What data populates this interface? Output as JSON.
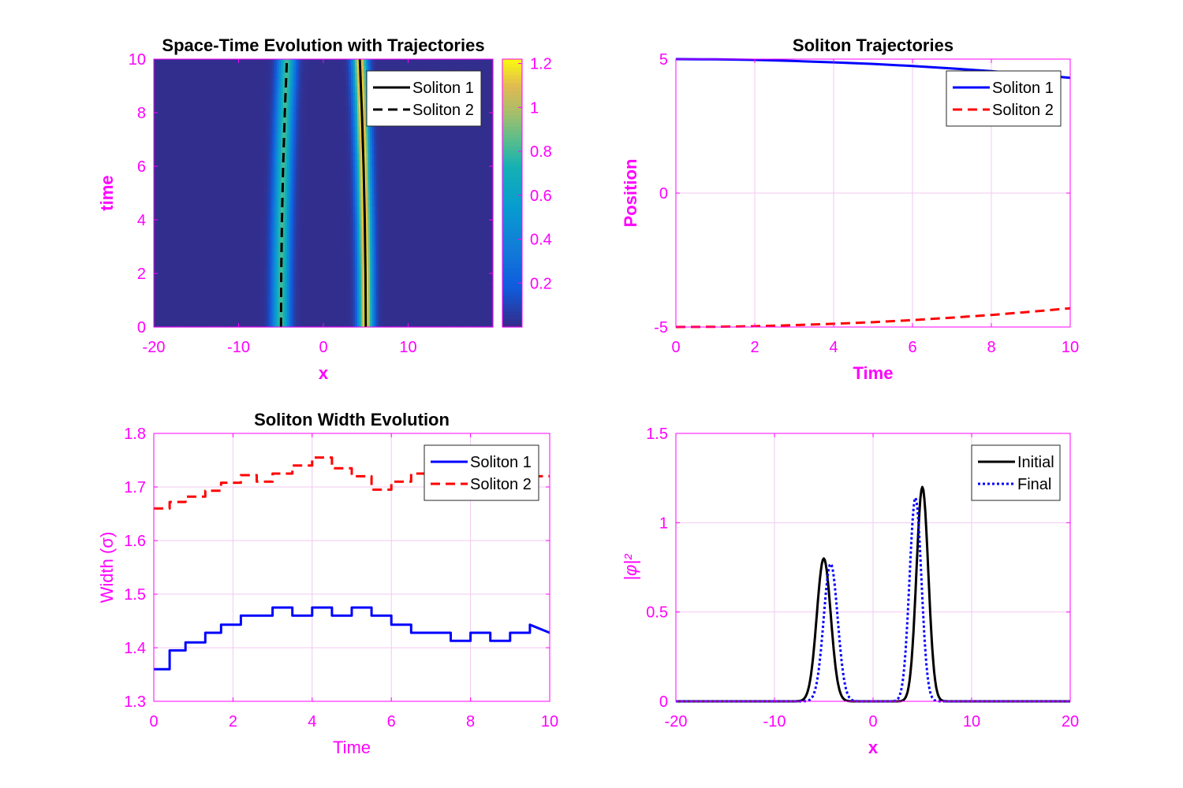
{
  "colors": {
    "axis": "#ff00ff",
    "grid": "#f2c8f2",
    "title": "#000000",
    "blue": "#0000ff",
    "red": "#ff0000",
    "black": "#000000"
  },
  "chart_data": [
    {
      "type": "heatmap",
      "title": "Space-Time Evolution with Trajectories",
      "xlabel": "x",
      "ylabel": "time",
      "xlim": [
        -20,
        20
      ],
      "ylim": [
        0,
        10
      ],
      "xticks": [
        -20,
        -10,
        0,
        10
      ],
      "yticks": [
        0,
        2,
        4,
        6,
        8,
        10
      ],
      "colorbar": {
        "range": [
          0,
          1.22
        ],
        "ticks": [
          0.2,
          0.4,
          0.6,
          0.8,
          1,
          1.2
        ],
        "colormap": "parula"
      },
      "series": [
        {
          "name": "Soliton 1",
          "style": "solid",
          "color": "#000000",
          "t": [
            0,
            2,
            4,
            6,
            8,
            10
          ],
          "x": [
            5.0,
            4.97,
            4.88,
            4.74,
            4.55,
            4.3
          ]
        },
        {
          "name": "Soliton 2",
          "style": "dashed",
          "color": "#000000",
          "t": [
            0,
            2,
            4,
            6,
            8,
            10
          ],
          "x": [
            -5.0,
            -4.97,
            -4.88,
            -4.74,
            -4.55,
            -4.3
          ]
        }
      ],
      "legend": "top-right"
    },
    {
      "type": "line",
      "title": "Soliton Trajectories",
      "xlabel": "Time",
      "ylabel": "Position",
      "xlim": [
        0,
        10
      ],
      "ylim": [
        -5,
        5
      ],
      "xticks": [
        0,
        2,
        4,
        6,
        8,
        10
      ],
      "yticks": [
        -5,
        0,
        5
      ],
      "x": [
        0,
        1,
        2,
        3,
        4,
        5,
        6,
        7,
        8,
        9,
        10
      ],
      "series": [
        {
          "name": "Soliton 1",
          "style": "solid",
          "color": "#0000ff",
          "values": [
            5.0,
            4.99,
            4.97,
            4.93,
            4.88,
            4.82,
            4.74,
            4.65,
            4.55,
            4.43,
            4.3
          ]
        },
        {
          "name": "Soliton 2",
          "style": "dashed",
          "color": "#ff0000",
          "values": [
            -5.0,
            -4.99,
            -4.97,
            -4.93,
            -4.88,
            -4.82,
            -4.74,
            -4.65,
            -4.55,
            -4.43,
            -4.3
          ]
        }
      ],
      "legend": "top-right"
    },
    {
      "type": "line",
      "title": "Soliton Width Evolution",
      "xlabel": "Time",
      "ylabel": "Width (σ)",
      "xlim": [
        0,
        10
      ],
      "ylim": [
        1.3,
        1.8
      ],
      "xticks": [
        0,
        2,
        4,
        6,
        8,
        10
      ],
      "yticks": [
        1.3,
        1.4,
        1.5,
        1.6,
        1.7,
        1.8
      ],
      "x": [
        0,
        0.4,
        0.4,
        0.8,
        0.8,
        1.3,
        1.3,
        1.7,
        1.7,
        2.2,
        2.2,
        2.6,
        2.6,
        3.0,
        3.0,
        3.5,
        3.5,
        4.0,
        4.0,
        4.5,
        4.5,
        5.0,
        5.0,
        5.5,
        5.5,
        6.0,
        6.0,
        6.5,
        6.5,
        7.0,
        7.0,
        7.5,
        7.5,
        8.0,
        8.0,
        8.5,
        8.5,
        9.0,
        9.0,
        9.5,
        9.5,
        10.0
      ],
      "series": [
        {
          "name": "Soliton 1",
          "style": "solid",
          "color": "#0000ff",
          "values": [
            1.36,
            1.36,
            1.395,
            1.395,
            1.41,
            1.41,
            1.428,
            1.428,
            1.443,
            1.443,
            1.46,
            1.46,
            1.46,
            1.46,
            1.475,
            1.475,
            1.46,
            1.46,
            1.475,
            1.475,
            1.46,
            1.46,
            1.475,
            1.475,
            1.46,
            1.46,
            1.443,
            1.443,
            1.428,
            1.428,
            1.428,
            1.428,
            1.413,
            1.413,
            1.428,
            1.428,
            1.413,
            1.413,
            1.428,
            1.428,
            1.443,
            1.428
          ]
        },
        {
          "name": "Soliton 2",
          "style": "dashed",
          "color": "#ff0000",
          "values": [
            1.66,
            1.66,
            1.672,
            1.672,
            1.682,
            1.682,
            1.693,
            1.693,
            1.708,
            1.708,
            1.722,
            1.722,
            1.71,
            1.71,
            1.725,
            1.725,
            1.74,
            1.74,
            1.755,
            1.755,
            1.735,
            1.735,
            1.72,
            1.72,
            1.695,
            1.695,
            1.71,
            1.71,
            1.725,
            1.725,
            1.73,
            1.73,
            1.715,
            1.715,
            1.728,
            1.728,
            1.715,
            1.715,
            1.725,
            1.725,
            1.72,
            1.72
          ]
        }
      ],
      "legend": "top-right"
    },
    {
      "type": "line",
      "title": "",
      "xlabel": "x",
      "ylabel": "|φ|²",
      "xlim": [
        -20,
        20
      ],
      "ylim": [
        0,
        1.5
      ],
      "xticks": [
        -20,
        -10,
        0,
        10,
        20
      ],
      "yticks": [
        0,
        0.5,
        1,
        1.5
      ],
      "series": [
        {
          "name": "Initial",
          "style": "solid",
          "color": "#000000",
          "peaks": [
            {
              "center": -5.0,
              "amp": 0.8,
              "width": 1.0
            },
            {
              "center": 5.0,
              "amp": 1.2,
              "width": 0.85
            }
          ]
        },
        {
          "name": "Final",
          "style": "dotted",
          "color": "#0000ff",
          "peaks": [
            {
              "center": -4.3,
              "amp": 0.77,
              "width": 1.0
            },
            {
              "center": 4.3,
              "amp": 1.14,
              "width": 0.85
            }
          ]
        }
      ],
      "legend": "top-right"
    }
  ]
}
